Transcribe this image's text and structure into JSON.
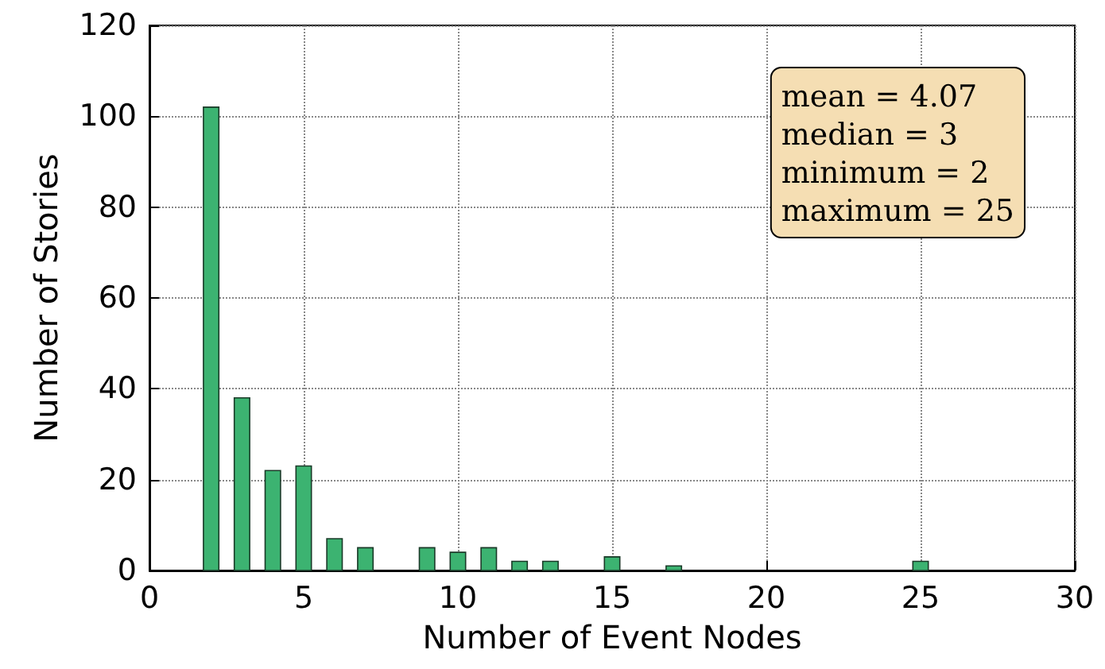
{
  "chart_data": {
    "type": "bar",
    "xlabel": "Number of Event Nodes",
    "ylabel": "Number of Stories",
    "x": [
      2,
      3,
      4,
      5,
      6,
      7,
      9,
      10,
      11,
      12,
      13,
      15,
      17,
      25
    ],
    "values": [
      102,
      38,
      22,
      23,
      7,
      5,
      5,
      4,
      5,
      2,
      2,
      3,
      1,
      2
    ],
    "color": "#3cb371",
    "xlim": [
      0,
      30
    ],
    "xticks": [
      0,
      5,
      10,
      15,
      20,
      25,
      30
    ],
    "ylim": [
      0,
      120
    ],
    "yticks": [
      0,
      20,
      40,
      60,
      80,
      100,
      120
    ],
    "grid": true,
    "line_style": "dotted",
    "annotations": [
      "mean = 4.07",
      "median = 3",
      "minimum = 2",
      "maximum = 25"
    ]
  }
}
